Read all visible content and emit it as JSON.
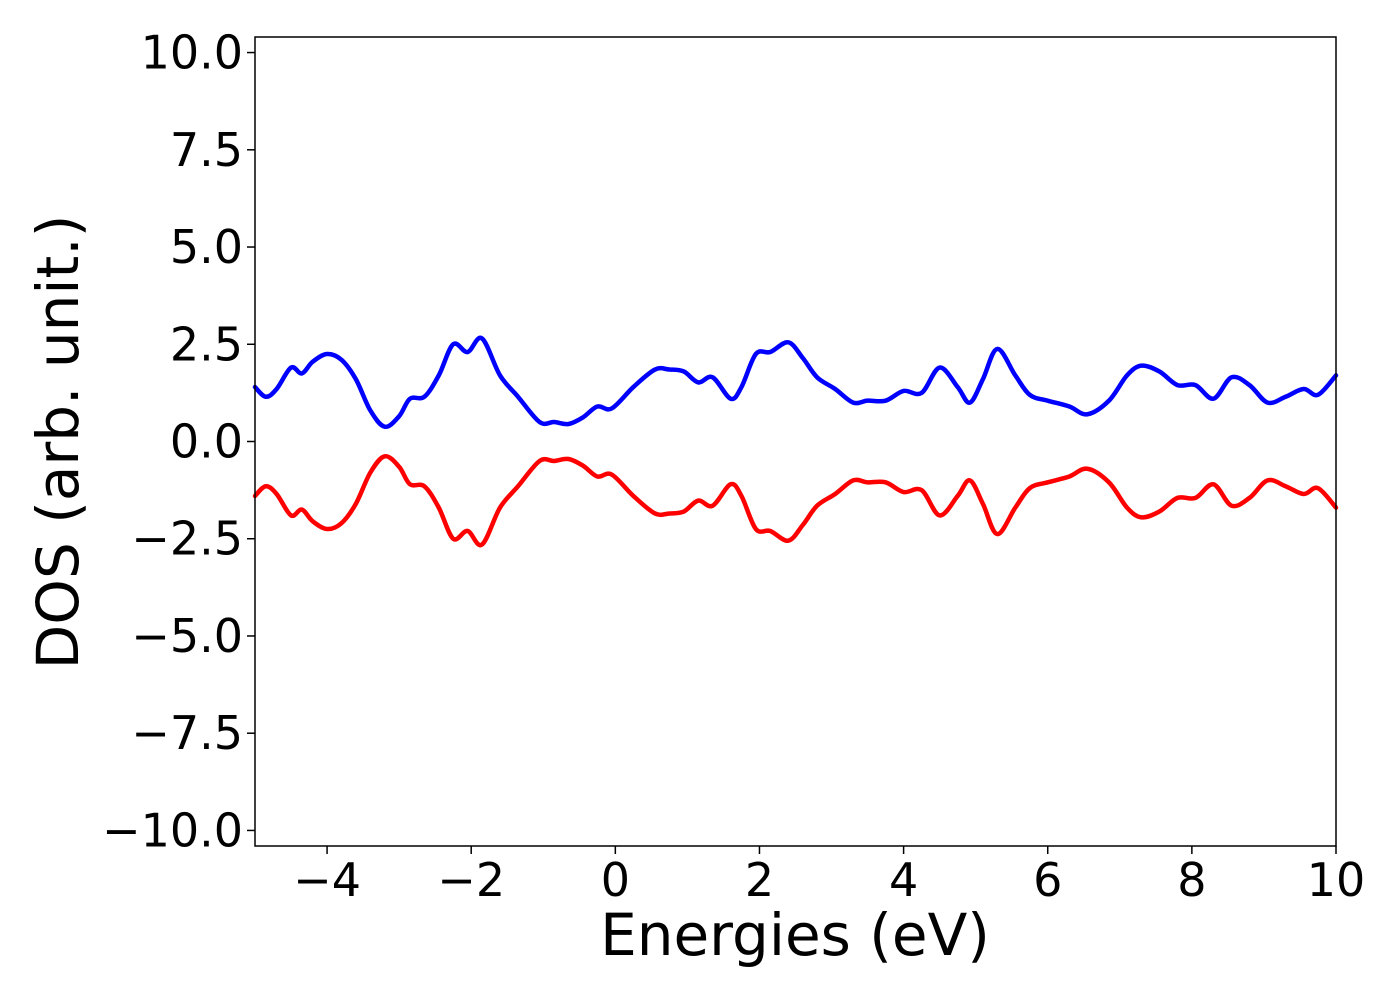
{
  "chart_data": {
    "type": "line",
    "xlabel": "Energies (eV)",
    "ylabel": "DOS (arb. unit.)",
    "xlim": [
      -5,
      10
    ],
    "ylim": [
      -10.4,
      10.4
    ],
    "x_ticks": [
      -4,
      -2,
      0,
      2,
      4,
      6,
      8,
      10
    ],
    "x_tick_labels": [
      "−4",
      "−2",
      "0",
      "2",
      "4",
      "6",
      "8",
      "10"
    ],
    "y_ticks": [
      10.0,
      7.5,
      5.0,
      2.5,
      0.0,
      -2.5,
      -5.0,
      -7.5,
      -10.0
    ],
    "y_tick_labels": [
      "10.0",
      "7.5",
      "5.0",
      "2.5",
      "0.0",
      "−2.5",
      "−5.0",
      "−7.5",
      "−10.0"
    ],
    "grid": false,
    "series": [
      {
        "color": "#0000ff",
        "points": [
          [
            -5.0,
            1.4
          ],
          [
            -4.85,
            1.15
          ],
          [
            -4.7,
            1.35
          ],
          [
            -4.5,
            1.9
          ],
          [
            -4.35,
            1.75
          ],
          [
            -4.2,
            2.05
          ],
          [
            -4.0,
            2.25
          ],
          [
            -3.8,
            2.1
          ],
          [
            -3.6,
            1.6
          ],
          [
            -3.4,
            0.8
          ],
          [
            -3.2,
            0.38
          ],
          [
            -3.0,
            0.65
          ],
          [
            -2.85,
            1.1
          ],
          [
            -2.65,
            1.15
          ],
          [
            -2.45,
            1.7
          ],
          [
            -2.25,
            2.5
          ],
          [
            -2.05,
            2.3
          ],
          [
            -1.85,
            2.65
          ],
          [
            -1.6,
            1.7
          ],
          [
            -1.35,
            1.15
          ],
          [
            -1.05,
            0.5
          ],
          [
            -0.85,
            0.5
          ],
          [
            -0.65,
            0.45
          ],
          [
            -0.45,
            0.62
          ],
          [
            -0.25,
            0.9
          ],
          [
            -0.05,
            0.85
          ],
          [
            0.25,
            1.4
          ],
          [
            0.55,
            1.85
          ],
          [
            0.75,
            1.85
          ],
          [
            0.95,
            1.8
          ],
          [
            1.15,
            1.52
          ],
          [
            1.35,
            1.65
          ],
          [
            1.6,
            1.1
          ],
          [
            1.75,
            1.4
          ],
          [
            1.95,
            2.25
          ],
          [
            2.15,
            2.3
          ],
          [
            2.4,
            2.55
          ],
          [
            2.6,
            2.15
          ],
          [
            2.8,
            1.65
          ],
          [
            3.05,
            1.35
          ],
          [
            3.3,
            1.0
          ],
          [
            3.5,
            1.05
          ],
          [
            3.75,
            1.05
          ],
          [
            4.0,
            1.3
          ],
          [
            4.25,
            1.25
          ],
          [
            4.5,
            1.9
          ],
          [
            4.75,
            1.4
          ],
          [
            4.92,
            1.0
          ],
          [
            5.1,
            1.6
          ],
          [
            5.3,
            2.38
          ],
          [
            5.55,
            1.7
          ],
          [
            5.75,
            1.2
          ],
          [
            6.0,
            1.05
          ],
          [
            6.3,
            0.9
          ],
          [
            6.55,
            0.7
          ],
          [
            6.85,
            1.05
          ],
          [
            7.1,
            1.7
          ],
          [
            7.3,
            1.95
          ],
          [
            7.55,
            1.8
          ],
          [
            7.8,
            1.45
          ],
          [
            8.05,
            1.45
          ],
          [
            8.3,
            1.1
          ],
          [
            8.55,
            1.65
          ],
          [
            8.8,
            1.45
          ],
          [
            9.05,
            1.0
          ],
          [
            9.3,
            1.15
          ],
          [
            9.55,
            1.35
          ],
          [
            9.75,
            1.2
          ],
          [
            10.0,
            1.7
          ]
        ]
      },
      {
        "color": "#ff0000",
        "points": [
          [
            -5.0,
            -1.4
          ],
          [
            -4.85,
            -1.15
          ],
          [
            -4.7,
            -1.35
          ],
          [
            -4.5,
            -1.9
          ],
          [
            -4.35,
            -1.75
          ],
          [
            -4.2,
            -2.05
          ],
          [
            -4.0,
            -2.25
          ],
          [
            -3.8,
            -2.1
          ],
          [
            -3.6,
            -1.6
          ],
          [
            -3.4,
            -0.8
          ],
          [
            -3.2,
            -0.38
          ],
          [
            -3.0,
            -0.65
          ],
          [
            -2.85,
            -1.1
          ],
          [
            -2.65,
            -1.15
          ],
          [
            -2.45,
            -1.7
          ],
          [
            -2.25,
            -2.5
          ],
          [
            -2.05,
            -2.3
          ],
          [
            -1.85,
            -2.65
          ],
          [
            -1.6,
            -1.7
          ],
          [
            -1.35,
            -1.15
          ],
          [
            -1.05,
            -0.5
          ],
          [
            -0.85,
            -0.5
          ],
          [
            -0.65,
            -0.45
          ],
          [
            -0.45,
            -0.62
          ],
          [
            -0.25,
            -0.9
          ],
          [
            -0.05,
            -0.85
          ],
          [
            0.25,
            -1.4
          ],
          [
            0.55,
            -1.85
          ],
          [
            0.75,
            -1.85
          ],
          [
            0.95,
            -1.8
          ],
          [
            1.15,
            -1.52
          ],
          [
            1.35,
            -1.65
          ],
          [
            1.6,
            -1.1
          ],
          [
            1.75,
            -1.4
          ],
          [
            1.95,
            -2.25
          ],
          [
            2.15,
            -2.3
          ],
          [
            2.4,
            -2.55
          ],
          [
            2.6,
            -2.15
          ],
          [
            2.8,
            -1.65
          ],
          [
            3.05,
            -1.35
          ],
          [
            3.3,
            -1.0
          ],
          [
            3.5,
            -1.05
          ],
          [
            3.75,
            -1.05
          ],
          [
            4.0,
            -1.3
          ],
          [
            4.25,
            -1.25
          ],
          [
            4.5,
            -1.9
          ],
          [
            4.75,
            -1.4
          ],
          [
            4.92,
            -1.0
          ],
          [
            5.1,
            -1.6
          ],
          [
            5.3,
            -2.38
          ],
          [
            5.55,
            -1.7
          ],
          [
            5.75,
            -1.2
          ],
          [
            6.0,
            -1.05
          ],
          [
            6.3,
            -0.9
          ],
          [
            6.55,
            -0.7
          ],
          [
            6.85,
            -1.05
          ],
          [
            7.1,
            -1.7
          ],
          [
            7.3,
            -1.95
          ],
          [
            7.55,
            -1.8
          ],
          [
            7.8,
            -1.45
          ],
          [
            8.05,
            -1.45
          ],
          [
            8.3,
            -1.1
          ],
          [
            8.55,
            -1.65
          ],
          [
            8.8,
            -1.45
          ],
          [
            9.05,
            -1.0
          ],
          [
            9.3,
            -1.15
          ],
          [
            9.55,
            -1.35
          ],
          [
            9.75,
            -1.2
          ],
          [
            10.0,
            -1.7
          ]
        ]
      }
    ]
  }
}
